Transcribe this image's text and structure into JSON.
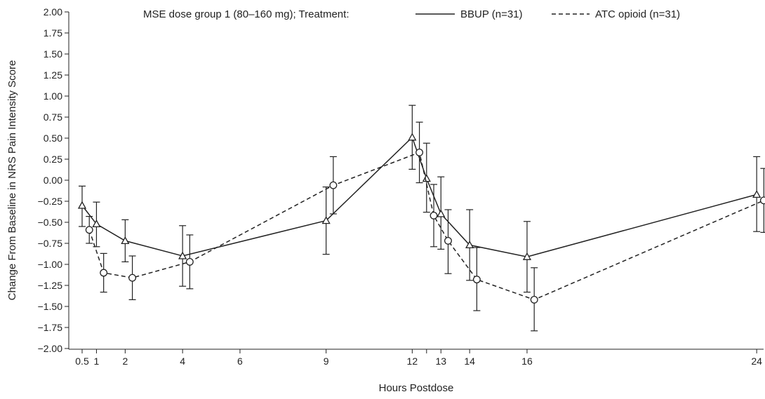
{
  "chart_data": {
    "type": "line",
    "xlabel": "Hours Postdose",
    "ylabel": "Change From Baseline in NRS Pain Intensity Score",
    "xlim": [
      0.05,
      24.05
    ],
    "ylim": [
      -2.0,
      2.0
    ],
    "x_tick_labels": [
      "0.5",
      "1",
      "2",
      "4",
      "6",
      "9",
      "12",
      "13",
      "14",
      "16",
      "24"
    ],
    "x_tick_values": [
      0.5,
      1,
      2,
      4,
      6,
      9,
      12,
      13,
      14,
      16,
      24
    ],
    "x_minor_ticks": [
      12.5
    ],
    "y_ticks": [
      -2.0,
      -1.75,
      -1.5,
      -1.25,
      -1.0,
      -0.75,
      -0.5,
      -0.25,
      0.0,
      0.25,
      0.5,
      0.75,
      1.0,
      1.25,
      1.5,
      1.75,
      2.0
    ],
    "y_tick_labels": [
      "−2.00",
      "−1.75",
      "−1.50",
      "−1.25",
      "−1.00",
      "−0.75",
      "−0.50",
      "−0.25",
      "0.00",
      "0.25",
      "0.50",
      "0.75",
      "1.00",
      "1.25",
      "1.50",
      "1.75",
      "2.00"
    ],
    "grid": false,
    "legend": {
      "prefix": "MSE dose group 1 (80–160 mg); Treatment:",
      "placement": "top"
    },
    "series": [
      {
        "name": "BBUP (n=31)",
        "line_style": "solid",
        "marker": "triangle",
        "color": "#222222",
        "points": [
          {
            "x": 0.5,
            "y": -0.3,
            "lo": -0.55,
            "hi": -0.07
          },
          {
            "x": 1,
            "y": -0.52,
            "lo": -0.79,
            "hi": -0.26
          },
          {
            "x": 2,
            "y": -0.72,
            "lo": -0.97,
            "hi": -0.47
          },
          {
            "x": 4,
            "y": -0.9,
            "lo": -1.26,
            "hi": -0.54
          },
          {
            "x": 9,
            "y": -0.48,
            "lo": -0.88,
            "hi": -0.08
          },
          {
            "x": 12,
            "y": 0.51,
            "lo": 0.13,
            "hi": 0.89
          },
          {
            "x": 12.5,
            "y": 0.02,
            "lo": -0.38,
            "hi": 0.44
          },
          {
            "x": 13,
            "y": -0.4,
            "lo": -0.82,
            "hi": 0.04
          },
          {
            "x": 14,
            "y": -0.77,
            "lo": -1.19,
            "hi": -0.35
          },
          {
            "x": 16,
            "y": -0.91,
            "lo": -1.33,
            "hi": -0.49
          },
          {
            "x": 24,
            "y": -0.17,
            "lo": -0.61,
            "hi": 0.28
          }
        ]
      },
      {
        "name": "ATC opioid (n=31)",
        "line_style": "dashed",
        "marker": "circle",
        "color": "#222222",
        "points": [
          {
            "x": 0.75,
            "y": -0.59,
            "lo": -0.75,
            "hi": -0.43
          },
          {
            "x": 1.25,
            "y": -1.1,
            "lo": -1.33,
            "hi": -0.87
          },
          {
            "x": 2.25,
            "y": -1.16,
            "lo": -1.42,
            "hi": -0.9
          },
          {
            "x": 4.25,
            "y": -0.97,
            "lo": -1.29,
            "hi": -0.65
          },
          {
            "x": 9.25,
            "y": -0.06,
            "lo": -0.4,
            "hi": 0.28
          },
          {
            "x": 12.25,
            "y": 0.33,
            "lo": -0.03,
            "hi": 0.69
          },
          {
            "x": 12.75,
            "y": -0.42,
            "lo": -0.79,
            "hi": -0.05
          },
          {
            "x": 13.25,
            "y": -0.72,
            "lo": -1.11,
            "hi": -0.35
          },
          {
            "x": 14.25,
            "y": -1.18,
            "lo": -1.55,
            "hi": -0.8
          },
          {
            "x": 16.25,
            "y": -1.42,
            "lo": -1.79,
            "hi": -1.04
          },
          {
            "x": 24.25,
            "y": -0.24,
            "lo": -0.62,
            "hi": 0.14
          }
        ]
      }
    ]
  }
}
